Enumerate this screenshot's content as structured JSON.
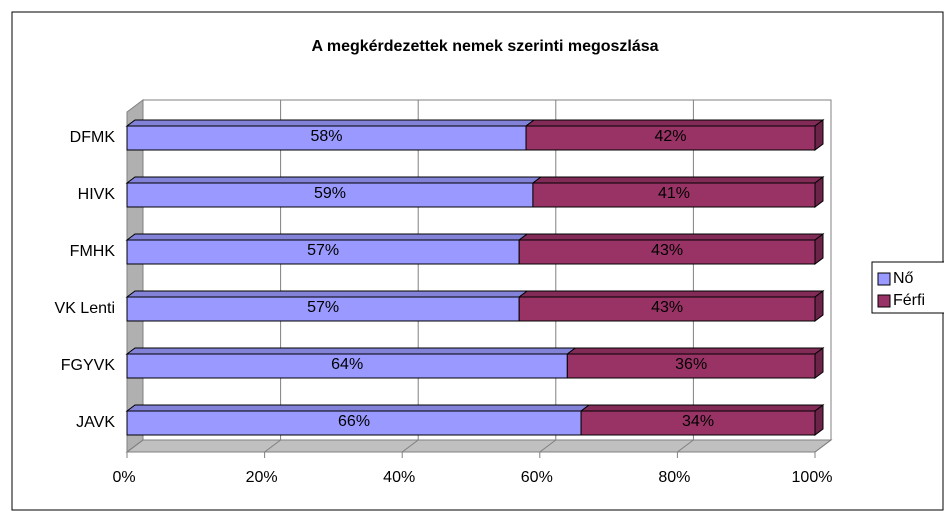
{
  "chart_data": {
    "type": "bar",
    "orientation": "horizontal",
    "stacked": true,
    "title": "A megkérdezettek nemek szerinti megoszlása",
    "categories": [
      "DFMK",
      "HIVK",
      "FMHK",
      "VK Lenti",
      "FGYVK",
      "JAVK"
    ],
    "series": [
      {
        "name": "Nő",
        "color": "#9999ff",
        "values": [
          58,
          59,
          57,
          57,
          64,
          66
        ],
        "value_labels": [
          "58%",
          "59%",
          "57%",
          "57%",
          "64%",
          "66%"
        ]
      },
      {
        "name": "Férfi",
        "color": "#993366",
        "values": [
          42,
          41,
          43,
          43,
          36,
          34
        ],
        "value_labels": [
          "42%",
          "41%",
          "43%",
          "43%",
          "36%",
          "34%"
        ]
      }
    ],
    "xlim": [
      0,
      100
    ],
    "xticks": [
      {
        "value": 0,
        "label": "0%"
      },
      {
        "value": 20,
        "label": "20%"
      },
      {
        "value": 40,
        "label": "40%"
      },
      {
        "value": 60,
        "label": "60%"
      },
      {
        "value": 80,
        "label": "80%"
      },
      {
        "value": 100,
        "label": "100%"
      }
    ],
    "grid": true,
    "legend": "right"
  }
}
